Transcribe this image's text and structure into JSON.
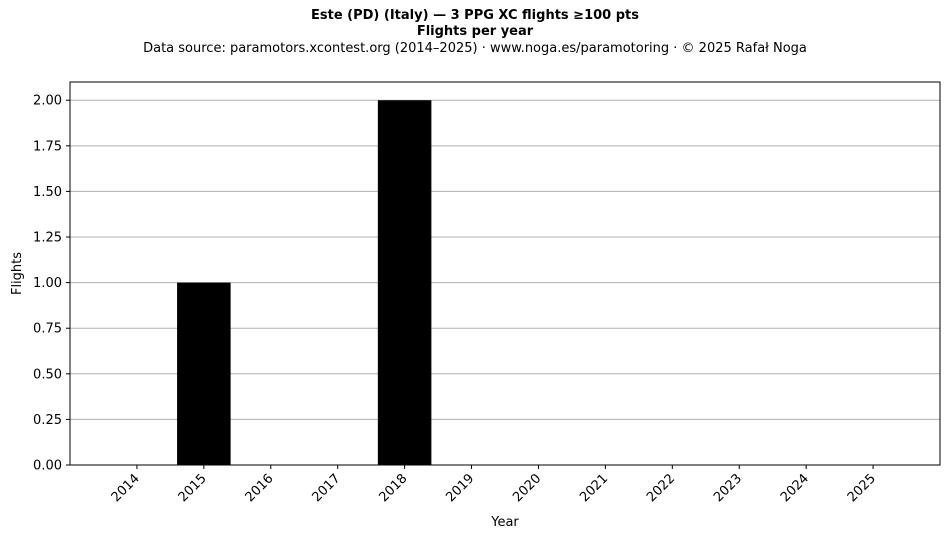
{
  "chart_data": {
    "type": "bar",
    "title": "Este (PD) (Italy)  —  3 PPG XC flights ≥100 pts",
    "title_line2": "Flights per year",
    "subtitle": "Data source: paramotors.xcontest.org (2014–2025)  ·  www.noga.es/paramotoring  ·  © 2025 Rafał Noga",
    "xlabel": "Year",
    "ylabel": "Flights",
    "categories": [
      "2014",
      "2015",
      "2016",
      "2017",
      "2018",
      "2019",
      "2020",
      "2021",
      "2022",
      "2023",
      "2024",
      "2025"
    ],
    "values": [
      0,
      1,
      0,
      0,
      2,
      0,
      0,
      0,
      0,
      0,
      0,
      0
    ],
    "ylim": [
      0,
      2.1
    ],
    "yticks": [
      0,
      0.25,
      0.5,
      0.75,
      1.0,
      1.25,
      1.5,
      1.75,
      2.0
    ],
    "ytick_labels": [
      "0.00",
      "0.25",
      "0.50",
      "0.75",
      "1.00",
      "1.25",
      "1.50",
      "1.75",
      "2.00"
    ],
    "grid": "y",
    "bar_color": "#000000",
    "grid_color": "#b0b0b0"
  }
}
